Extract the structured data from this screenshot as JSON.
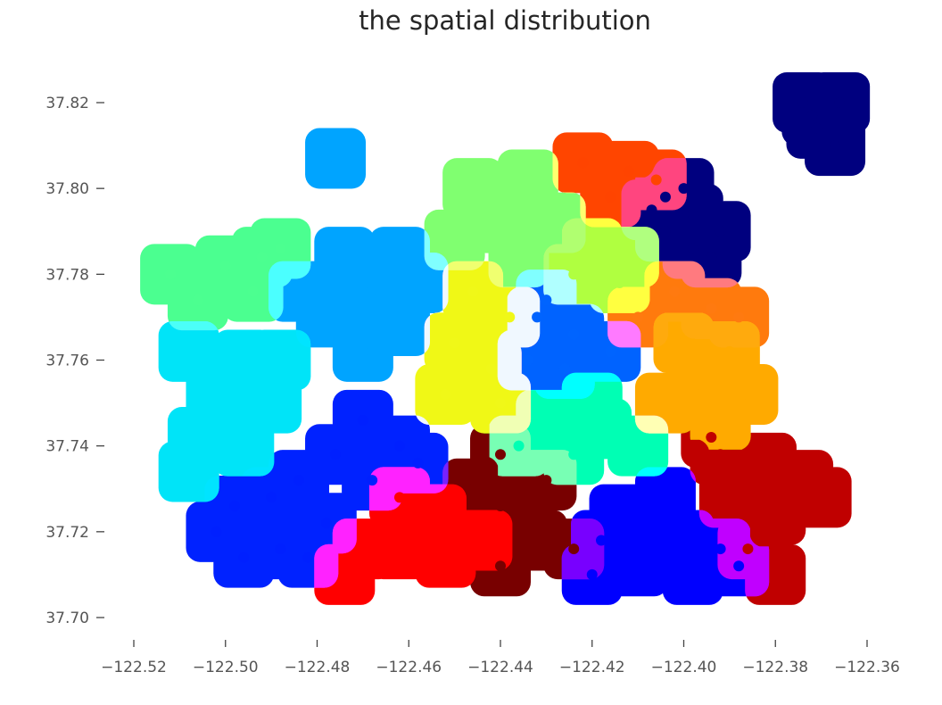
{
  "chart_data": {
    "type": "scatter",
    "title": "the spatial distribution",
    "xlabel": "",
    "ylabel": "",
    "xlim": [
      -122.525,
      -122.355
    ],
    "ylim": [
      37.697,
      37.823
    ],
    "x_ticks": [
      -122.52,
      -122.5,
      -122.48,
      -122.46,
      -122.44,
      -122.42,
      -122.4,
      -122.38,
      -122.36
    ],
    "x_tick_labels": [
      "−122.52",
      "−122.50",
      "−122.48",
      "−122.46",
      "−122.44",
      "−122.42",
      "−122.40",
      "−122.38",
      "−122.36"
    ],
    "y_ticks": [
      37.7,
      37.72,
      37.74,
      37.76,
      37.78,
      37.8,
      37.82
    ],
    "y_tick_labels": [
      "37.70",
      "37.72",
      "37.74",
      "37.76",
      "37.78",
      "37.80",
      "37.82"
    ],
    "grid": false,
    "legend": "none",
    "colormap": "jet",
    "series": [
      {
        "color": "#00007f",
        "points": [
          [
            -122.404,
            37.798
          ],
          [
            -122.398,
            37.794
          ],
          [
            -122.404,
            37.79
          ],
          [
            -122.398,
            37.786
          ],
          [
            -122.392,
            37.79
          ],
          [
            -122.394,
            37.784
          ],
          [
            -122.407,
            37.795
          ],
          [
            -122.4,
            37.8
          ],
          [
            -122.374,
            37.82
          ],
          [
            -122.372,
            37.817
          ],
          [
            -122.371,
            37.814
          ],
          [
            -122.366,
            37.82
          ],
          [
            -122.367,
            37.81
          ]
        ]
      },
      {
        "color": "#0000ff",
        "points": [
          [
            -122.414,
            37.724
          ],
          [
            -122.406,
            37.722
          ],
          [
            -122.4,
            37.718
          ],
          [
            -122.41,
            37.712
          ],
          [
            -122.398,
            37.71
          ],
          [
            -122.392,
            37.716
          ],
          [
            -122.418,
            37.718
          ],
          [
            -122.404,
            37.728
          ],
          [
            -122.388,
            37.712
          ],
          [
            -122.42,
            37.71
          ]
        ]
      },
      {
        "color": "#0020ff",
        "points": [
          [
            -122.47,
            37.746
          ],
          [
            -122.462,
            37.74
          ],
          [
            -122.476,
            37.738
          ],
          [
            -122.468,
            37.732
          ],
          [
            -122.458,
            37.736
          ],
          [
            -122.484,
            37.732
          ],
          [
            -122.478,
            37.722
          ],
          [
            -122.482,
            37.714
          ],
          [
            -122.488,
            37.716
          ],
          [
            -122.49,
            37.728
          ],
          [
            -122.498,
            37.726
          ],
          [
            -122.502,
            37.72
          ],
          [
            -122.496,
            37.714
          ]
        ]
      },
      {
        "color": "#0064ff",
        "points": [
          [
            -122.432,
            37.77
          ],
          [
            -122.424,
            37.766
          ],
          [
            -122.434,
            37.76
          ],
          [
            -122.426,
            37.758
          ],
          [
            -122.416,
            37.762
          ],
          [
            -122.43,
            37.774
          ]
        ]
      },
      {
        "color": "#00a4ff",
        "points": [
          [
            -122.474,
            37.784
          ],
          [
            -122.462,
            37.784
          ],
          [
            -122.468,
            37.776
          ],
          [
            -122.478,
            37.77
          ],
          [
            -122.462,
            37.768
          ],
          [
            -122.47,
            37.762
          ],
          [
            -122.458,
            37.778
          ],
          [
            -122.484,
            37.776
          ],
          [
            -122.476,
            37.807
          ]
        ]
      },
      {
        "color": "#00e4f8",
        "points": [
          [
            -122.508,
            37.762
          ],
          [
            -122.496,
            37.76
          ],
          [
            -122.502,
            37.752
          ],
          [
            -122.49,
            37.75
          ],
          [
            -122.506,
            37.742
          ],
          [
            -122.496,
            37.74
          ],
          [
            -122.508,
            37.734
          ],
          [
            -122.488,
            37.76
          ]
        ]
      },
      {
        "color": "#00ffb4",
        "points": [
          [
            -122.43,
            37.746
          ],
          [
            -122.418,
            37.744
          ],
          [
            -122.424,
            37.738
          ],
          [
            -122.41,
            37.74
          ],
          [
            -122.436,
            37.74
          ],
          [
            -122.42,
            37.75
          ]
        ]
      },
      {
        "color": "#4cff90",
        "points": [
          [
            -122.512,
            37.78
          ],
          [
            -122.5,
            37.782
          ],
          [
            -122.492,
            37.784
          ],
          [
            -122.506,
            37.774
          ],
          [
            -122.494,
            37.776
          ],
          [
            -122.488,
            37.786
          ]
        ]
      },
      {
        "color": "#80ff70",
        "points": [
          [
            -122.446,
            37.8
          ],
          [
            -122.434,
            37.802
          ],
          [
            -122.44,
            37.792
          ],
          [
            -122.428,
            37.792
          ],
          [
            -122.45,
            37.788
          ],
          [
            -122.436,
            37.784
          ]
        ]
      },
      {
        "color": "#b0ff40",
        "points": [
          [
            -122.42,
            37.786
          ],
          [
            -122.412,
            37.784
          ],
          [
            -122.424,
            37.78
          ],
          [
            -122.414,
            37.778
          ]
        ]
      },
      {
        "color": "#f0f818",
        "points": [
          [
            -122.446,
            37.776
          ],
          [
            -122.438,
            37.77
          ],
          [
            -122.45,
            37.764
          ],
          [
            -122.442,
            37.758
          ],
          [
            -122.452,
            37.752
          ],
          [
            -122.44,
            37.75
          ]
        ]
      },
      {
        "color": "#ffaa00",
        "points": [
          [
            -122.4,
            37.764
          ],
          [
            -122.39,
            37.762
          ],
          [
            -122.396,
            37.754
          ],
          [
            -122.386,
            37.752
          ],
          [
            -122.404,
            37.75
          ],
          [
            -122.392,
            37.746
          ]
        ]
      },
      {
        "color": "#ff7a10",
        "points": [
          [
            -122.402,
            37.776
          ],
          [
            -122.394,
            37.772
          ],
          [
            -122.41,
            37.77
          ],
          [
            -122.388,
            37.77
          ]
        ]
      },
      {
        "color": "#ff4400",
        "points": [
          [
            -122.422,
            37.806
          ],
          [
            -122.412,
            37.804
          ],
          [
            -122.416,
            37.798
          ],
          [
            -122.406,
            37.802
          ]
        ]
      },
      {
        "color": "#ff0000",
        "points": [
          [
            -122.462,
            37.728
          ],
          [
            -122.454,
            37.724
          ],
          [
            -122.462,
            37.716
          ],
          [
            -122.452,
            37.714
          ],
          [
            -122.47,
            37.716
          ],
          [
            -122.444,
            37.718
          ],
          [
            -122.474,
            37.71
          ]
        ]
      },
      {
        "color": "#c00000",
        "points": [
          [
            -122.392,
            37.738
          ],
          [
            -122.382,
            37.736
          ],
          [
            -122.39,
            37.728
          ],
          [
            -122.38,
            37.724
          ],
          [
            -122.386,
            37.716
          ],
          [
            -122.374,
            37.732
          ],
          [
            -122.37,
            37.728
          ],
          [
            -122.394,
            37.742
          ],
          [
            -122.38,
            37.71
          ]
        ]
      },
      {
        "color": "#780000",
        "points": [
          [
            -122.44,
            37.738
          ],
          [
            -122.43,
            37.732
          ],
          [
            -122.44,
            37.726
          ],
          [
            -122.432,
            37.718
          ],
          [
            -122.424,
            37.716
          ],
          [
            -122.44,
            37.712
          ],
          [
            -122.446,
            37.73
          ]
        ]
      }
    ]
  }
}
